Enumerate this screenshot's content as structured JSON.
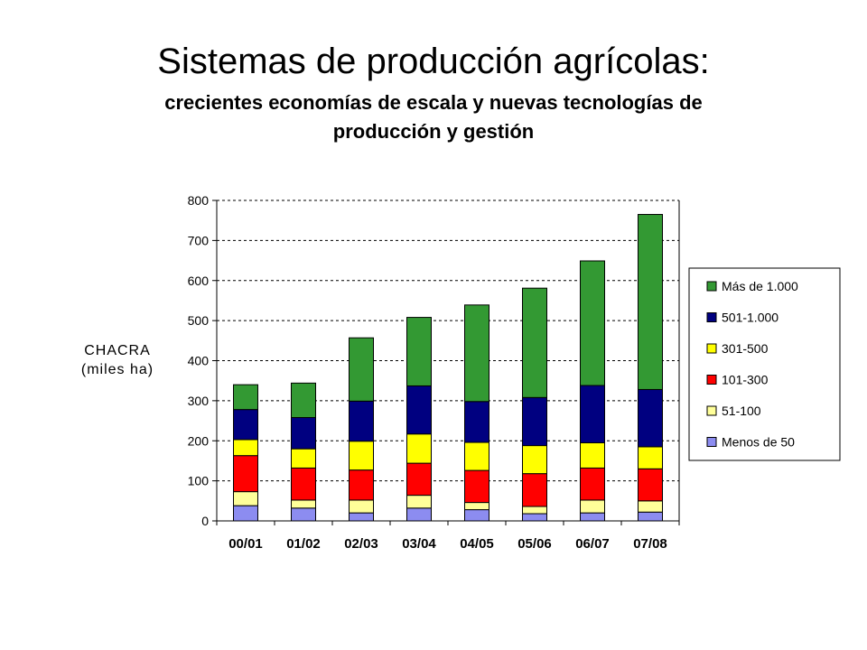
{
  "header": {
    "title": "Sistemas de producción agrícolas:",
    "subtitle": "crecientes economías de escala y nuevas tecnologías de producción y gestión"
  },
  "chart_data": {
    "type": "bar",
    "stacked": true,
    "categories": [
      "00/01",
      "01/02",
      "02/03",
      "03/04",
      "04/05",
      "05/06",
      "06/07",
      "07/08"
    ],
    "ylabel_lines": [
      "CHACRA",
      "(miles ha)"
    ],
    "ylim": [
      0,
      800
    ],
    "yticks": [
      0,
      100,
      200,
      300,
      400,
      500,
      600,
      700,
      800
    ],
    "grid": true,
    "legend_position": "right",
    "series": [
      {
        "name": "Menos de 50",
        "color": "#8C8CF0",
        "values": [
          38,
          32,
          20,
          32,
          28,
          18,
          20,
          22
        ]
      },
      {
        "name": "51-100",
        "color": "#FFFF99",
        "values": [
          35,
          20,
          32,
          32,
          18,
          18,
          32,
          28
        ]
      },
      {
        "name": "101-300",
        "color": "#FF0000",
        "values": [
          90,
          80,
          75,
          80,
          80,
          82,
          80,
          80
        ]
      },
      {
        "name": "301-500",
        "color": "#FFFF00",
        "values": [
          40,
          48,
          72,
          73,
          70,
          70,
          63,
          55
        ]
      },
      {
        "name": "501-1.000",
        "color": "#000080",
        "values": [
          75,
          78,
          100,
          120,
          102,
          120,
          143,
          143
        ]
      },
      {
        "name": "Más de 1.000",
        "color": "#339933",
        "values": [
          62,
          86,
          158,
          171,
          241,
          273,
          311,
          437
        ]
      }
    ]
  }
}
